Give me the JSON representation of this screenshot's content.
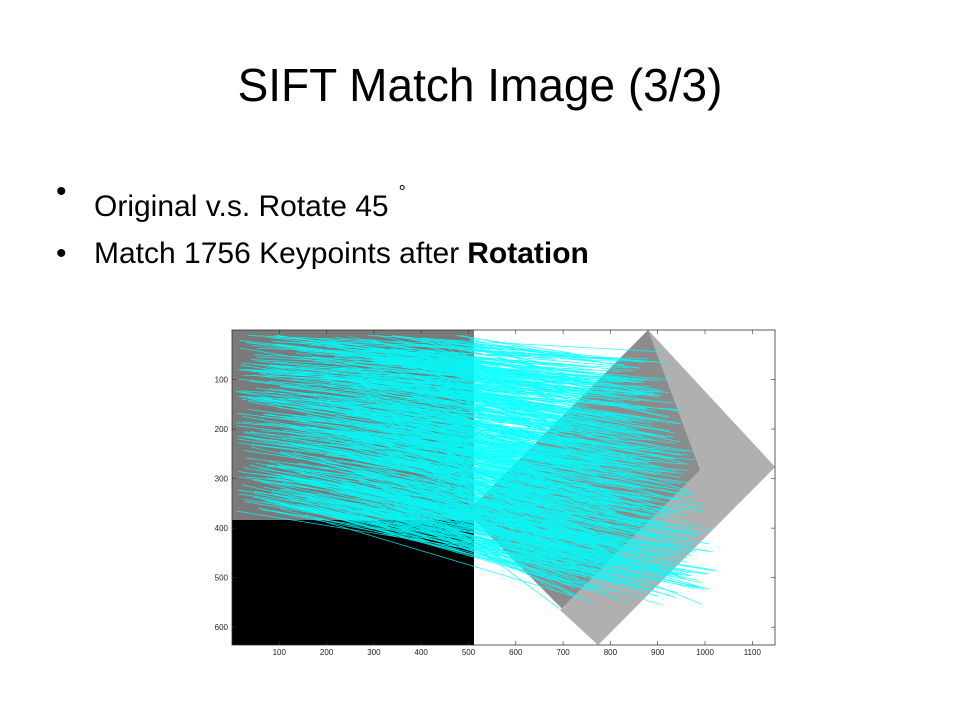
{
  "header": {
    "title": "SIFT Match Image (3/3)"
  },
  "bullets": [
    {
      "text": "Original v.s. Rotate 45",
      "suffix": "°"
    },
    {
      "text": "Match 1756 Keypoints after",
      "emphasis": "Rotation"
    }
  ],
  "figure": {
    "xlim": [
      0,
      1148
    ],
    "ylim": [
      0,
      636
    ],
    "xticks": [
      100,
      200,
      300,
      400,
      500,
      600,
      700,
      800,
      900,
      1000,
      1100
    ],
    "yticks": [
      100,
      200,
      300,
      400,
      500,
      600
    ]
  }
}
